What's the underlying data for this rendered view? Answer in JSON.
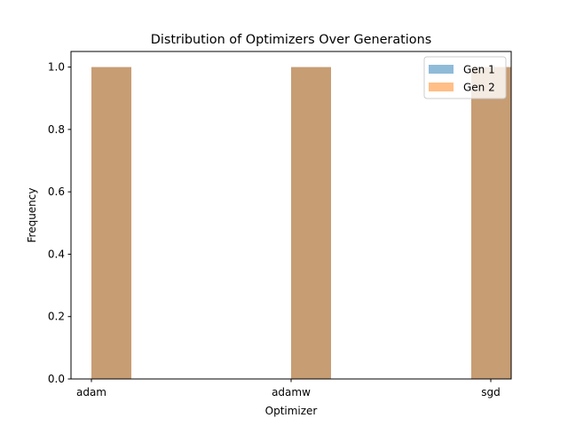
{
  "chart_data": {
    "type": "bar",
    "title": "Distribution of Optimizers Over Generations",
    "xlabel": "Optimizer",
    "ylabel": "Frequency",
    "categories": [
      "adam",
      "adamw",
      "sgd"
    ],
    "ylim": [
      0,
      1.05
    ],
    "yticks": [
      "0.0",
      "0.2",
      "0.4",
      "0.6",
      "0.8",
      "1.0"
    ],
    "grid": false,
    "legend_placement": "upper-right",
    "series": [
      {
        "name": "Gen 1",
        "values": [
          1,
          1,
          1
        ],
        "color": "#1f77b4",
        "alpha": 0.5
      },
      {
        "name": "Gen 2",
        "values": [
          1,
          1,
          1
        ],
        "color": "#ff7f0e",
        "alpha": 0.5
      }
    ]
  }
}
